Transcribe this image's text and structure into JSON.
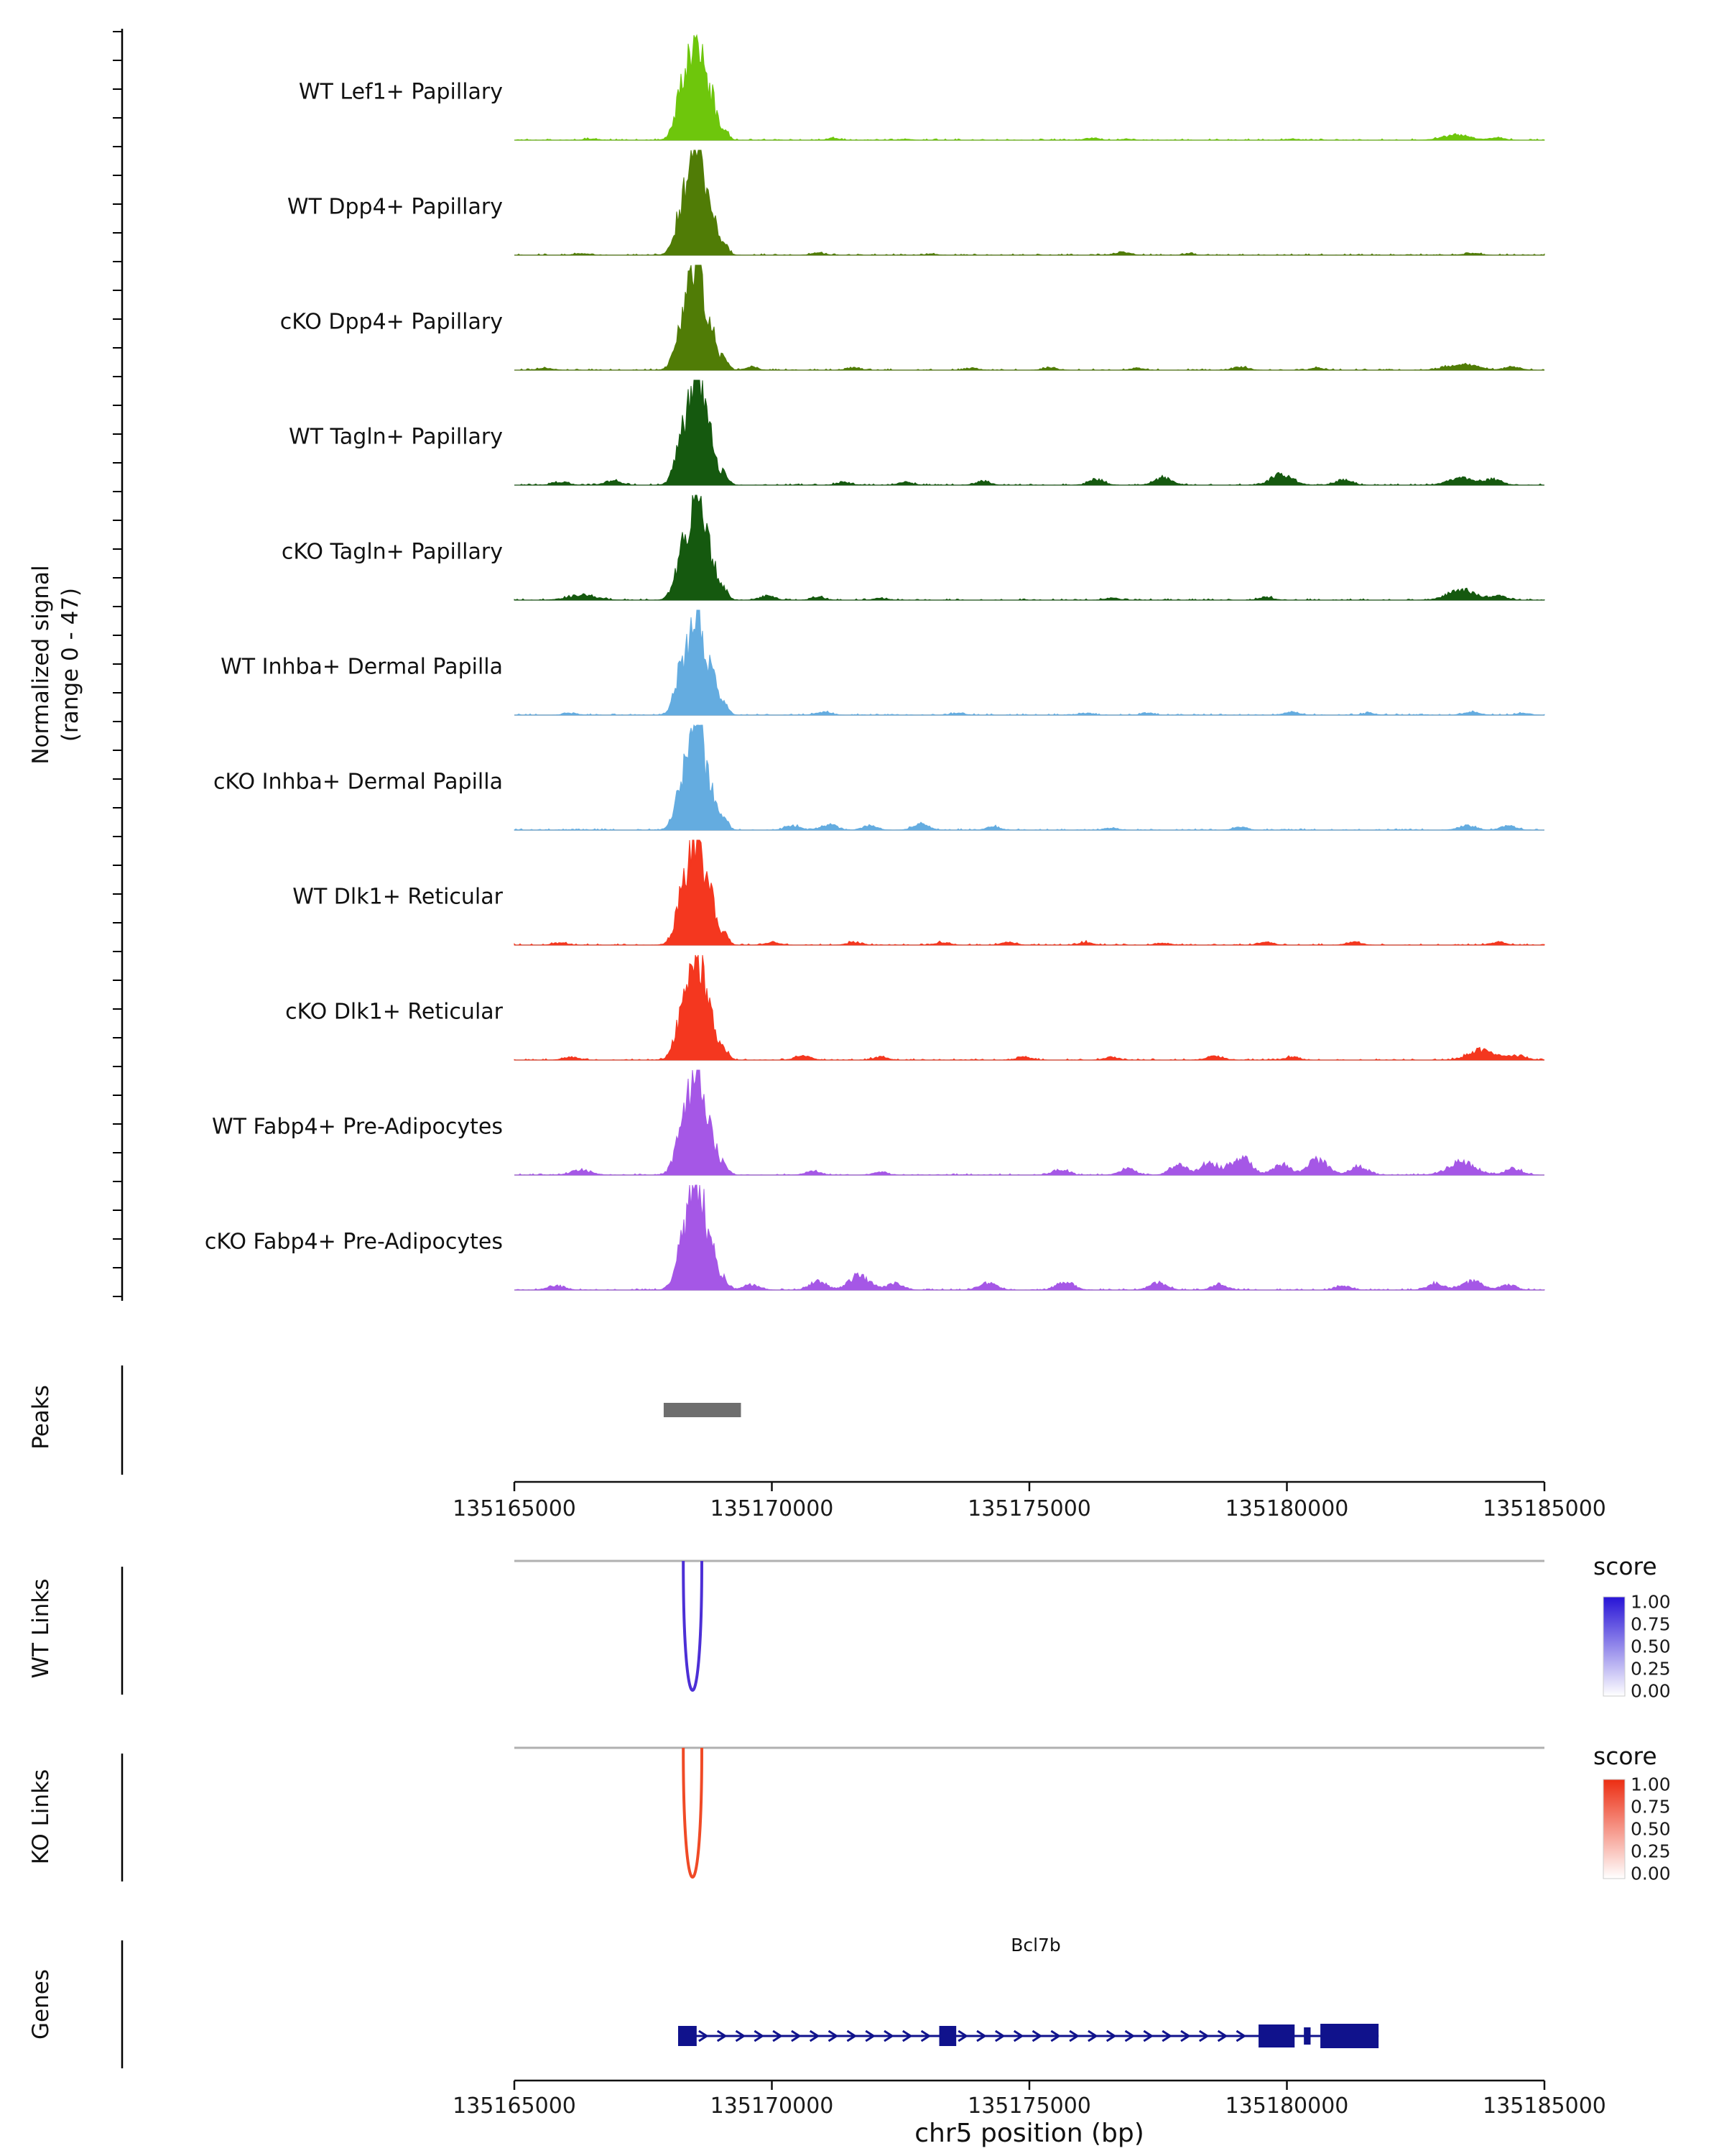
{
  "chart_data": {
    "type": "area",
    "title": "",
    "y_axis": {
      "label_line1": "Normalized signal",
      "label_line2": "(range 0 - 47)",
      "range": [
        0,
        47
      ]
    },
    "x_axis": {
      "label": "chr5 position (bp)",
      "min": 135165000,
      "max": 135185000,
      "ticks": [
        135165000,
        135170000,
        135175000,
        135180000,
        135185000
      ],
      "tick_labels": [
        "135165000",
        "135170000",
        "135175000",
        "135180000",
        "135185000"
      ]
    },
    "sections": {
      "peaks_label": "Peaks",
      "wt_links_label": "WT Links",
      "ko_links_label": "KO Links",
      "genes_label": "Genes"
    },
    "legend": {
      "title": "score",
      "tick_labels": [
        "1.00",
        "0.75",
        "0.50",
        "0.25",
        "0.00"
      ],
      "wt_top_color": "#2713D6",
      "ko_top_color": "#EC2D12"
    },
    "tracks": [
      {
        "label": "WT Lef1+ Papillary",
        "color": "#6EC60C",
        "bumps": [
          [
            135168300,
            0.52,
            150
          ],
          [
            135168560,
            1.0,
            115
          ],
          [
            135168820,
            0.4,
            100
          ],
          [
            135169080,
            0.1,
            80
          ],
          [
            135166500,
            0.012,
            120
          ],
          [
            135171200,
            0.015,
            120
          ],
          [
            135172600,
            0.01,
            100
          ],
          [
            135176200,
            0.02,
            130
          ],
          [
            135176900,
            0.012,
            100
          ],
          [
            135180100,
            0.012,
            100
          ],
          [
            135183300,
            0.05,
            260
          ],
          [
            135184100,
            0.02,
            140
          ]
        ]
      },
      {
        "label": "WT Dpp4+ Papillary",
        "color": "#507C06",
        "bumps": [
          [
            135168300,
            0.52,
            150
          ],
          [
            135168560,
            1.0,
            115
          ],
          [
            135168820,
            0.4,
            100
          ],
          [
            135169080,
            0.1,
            80
          ],
          [
            135166300,
            0.015,
            130
          ],
          [
            135170900,
            0.02,
            120
          ],
          [
            135173100,
            0.01,
            100
          ],
          [
            135176800,
            0.028,
            140
          ],
          [
            135178100,
            0.012,
            100
          ],
          [
            135183600,
            0.018,
            140
          ]
        ]
      },
      {
        "label": "cKO Dpp4+ Papillary",
        "color": "#507C06",
        "bumps": [
          [
            135168300,
            0.52,
            150
          ],
          [
            135168560,
            1.0,
            115
          ],
          [
            135168820,
            0.4,
            100
          ],
          [
            135169080,
            0.1,
            80
          ],
          [
            135165600,
            0.02,
            140
          ],
          [
            135169600,
            0.03,
            120
          ],
          [
            135171600,
            0.022,
            130
          ],
          [
            135173900,
            0.018,
            120
          ],
          [
            135175400,
            0.022,
            130
          ],
          [
            135177100,
            0.02,
            120
          ],
          [
            135179100,
            0.028,
            140
          ],
          [
            135180600,
            0.02,
            120
          ],
          [
            135183400,
            0.055,
            280
          ],
          [
            135184400,
            0.028,
            150
          ]
        ]
      },
      {
        "label": "WT Tagln+ Papillary",
        "color": "#15590F",
        "bumps": [
          [
            135168300,
            0.52,
            150
          ],
          [
            135168560,
            1.0,
            115
          ],
          [
            135168820,
            0.4,
            100
          ],
          [
            135169080,
            0.1,
            80
          ],
          [
            135165900,
            0.03,
            150
          ],
          [
            135166900,
            0.04,
            150
          ],
          [
            135171400,
            0.028,
            130
          ],
          [
            135172600,
            0.028,
            130
          ],
          [
            135174100,
            0.035,
            140
          ],
          [
            135176300,
            0.05,
            150
          ],
          [
            135177600,
            0.075,
            160
          ],
          [
            135179900,
            0.1,
            200
          ],
          [
            135181100,
            0.05,
            150
          ],
          [
            135183400,
            0.07,
            240
          ],
          [
            135184000,
            0.055,
            160
          ]
        ]
      },
      {
        "label": "cKO Tagln+ Papillary",
        "color": "#15590F",
        "bumps": [
          [
            135168300,
            0.52,
            150
          ],
          [
            135168560,
            1.0,
            115
          ],
          [
            135168820,
            0.4,
            100
          ],
          [
            135169080,
            0.1,
            80
          ],
          [
            135166300,
            0.05,
            260
          ],
          [
            135169900,
            0.04,
            140
          ],
          [
            135170900,
            0.028,
            130
          ],
          [
            135172100,
            0.02,
            120
          ],
          [
            135176600,
            0.02,
            130
          ],
          [
            135179600,
            0.028,
            130
          ],
          [
            135183400,
            0.1,
            260
          ],
          [
            135184100,
            0.04,
            150
          ]
        ]
      },
      {
        "label": "WT Inhba+ Dermal Papilla",
        "color": "#64ACE0",
        "bumps": [
          [
            135168300,
            0.52,
            150
          ],
          [
            135168560,
            1.0,
            115
          ],
          [
            135168820,
            0.4,
            100
          ],
          [
            135169080,
            0.1,
            80
          ],
          [
            135166100,
            0.018,
            130
          ],
          [
            135171000,
            0.028,
            140
          ],
          [
            135173600,
            0.018,
            120
          ],
          [
            135176100,
            0.018,
            130
          ],
          [
            135177300,
            0.018,
            120
          ],
          [
            135180100,
            0.026,
            140
          ],
          [
            135181600,
            0.018,
            120
          ],
          [
            135183600,
            0.028,
            150
          ],
          [
            135184600,
            0.018,
            120
          ]
        ]
      },
      {
        "label": "cKO Inhba+ Dermal Papilla",
        "color": "#64ACE0",
        "bumps": [
          [
            135168300,
            0.52,
            150
          ],
          [
            135168560,
            1.0,
            115
          ],
          [
            135168820,
            0.4,
            100
          ],
          [
            135169080,
            0.1,
            80
          ],
          [
            135170400,
            0.04,
            140
          ],
          [
            135171100,
            0.05,
            150
          ],
          [
            135171900,
            0.04,
            140
          ],
          [
            135172900,
            0.06,
            150
          ],
          [
            135174300,
            0.03,
            130
          ],
          [
            135176600,
            0.02,
            120
          ],
          [
            135179100,
            0.026,
            130
          ],
          [
            135183500,
            0.04,
            160
          ],
          [
            135184300,
            0.04,
            150
          ]
        ]
      },
      {
        "label": "WT Dlk1+ Reticular",
        "color": "#F4371F",
        "bumps": [
          [
            135168300,
            0.52,
            150
          ],
          [
            135168560,
            1.0,
            115
          ],
          [
            135168820,
            0.4,
            100
          ],
          [
            135169080,
            0.1,
            80
          ],
          [
            135165900,
            0.02,
            130
          ],
          [
            135170000,
            0.028,
            130
          ],
          [
            135171600,
            0.028,
            130
          ],
          [
            135173300,
            0.026,
            130
          ],
          [
            135174600,
            0.026,
            130
          ],
          [
            135176100,
            0.026,
            130
          ],
          [
            135177600,
            0.02,
            120
          ],
          [
            135179600,
            0.028,
            130
          ],
          [
            135181300,
            0.026,
            130
          ],
          [
            135184100,
            0.028,
            140
          ]
        ]
      },
      {
        "label": "cKO Dlk1+ Reticular",
        "color": "#F4371F",
        "bumps": [
          [
            135168300,
            0.52,
            150
          ],
          [
            135168560,
            1.0,
            115
          ],
          [
            135168820,
            0.4,
            100
          ],
          [
            135169080,
            0.1,
            80
          ],
          [
            135166100,
            0.028,
            140
          ],
          [
            135170600,
            0.04,
            150
          ],
          [
            135172100,
            0.028,
            130
          ],
          [
            135174900,
            0.028,
            130
          ],
          [
            135176600,
            0.028,
            130
          ],
          [
            135178600,
            0.04,
            150
          ],
          [
            135180100,
            0.028,
            130
          ],
          [
            135183800,
            0.09,
            260
          ],
          [
            135184500,
            0.04,
            150
          ]
        ]
      },
      {
        "label": "WT Fabp4+ Pre-Adipocytes",
        "color": "#A557E6",
        "bumps": [
          [
            135168300,
            0.52,
            150
          ],
          [
            135168560,
            1.0,
            115
          ],
          [
            135168820,
            0.4,
            100
          ],
          [
            135169080,
            0.1,
            80
          ],
          [
            135166300,
            0.05,
            180
          ],
          [
            135170800,
            0.04,
            140
          ],
          [
            135172100,
            0.028,
            130
          ],
          [
            135175600,
            0.05,
            150
          ],
          [
            135176900,
            0.06,
            150
          ],
          [
            135177900,
            0.1,
            160
          ],
          [
            135178500,
            0.12,
            160
          ],
          [
            135179100,
            0.16,
            200
          ],
          [
            135179900,
            0.1,
            160
          ],
          [
            135180600,
            0.14,
            200
          ],
          [
            135181400,
            0.08,
            160
          ],
          [
            135183400,
            0.12,
            260
          ],
          [
            135184400,
            0.06,
            160
          ]
        ]
      },
      {
        "label": "cKO Fabp4+ Pre-Adipocytes",
        "color": "#A557E6",
        "bumps": [
          [
            135168300,
            0.52,
            150
          ],
          [
            135168560,
            1.0,
            115
          ],
          [
            135168820,
            0.4,
            100
          ],
          [
            135169080,
            0.1,
            80
          ],
          [
            135165800,
            0.04,
            160
          ],
          [
            135169600,
            0.05,
            150
          ],
          [
            135170900,
            0.08,
            160
          ],
          [
            135171700,
            0.13,
            200
          ],
          [
            135172400,
            0.06,
            150
          ],
          [
            135174200,
            0.07,
            160
          ],
          [
            135175700,
            0.08,
            160
          ],
          [
            135177500,
            0.07,
            160
          ],
          [
            135178700,
            0.05,
            150
          ],
          [
            135181100,
            0.04,
            140
          ],
          [
            135182900,
            0.06,
            160
          ],
          [
            135183600,
            0.08,
            200
          ],
          [
            135184300,
            0.05,
            150
          ]
        ]
      }
    ],
    "peaks": {
      "regions": [
        [
          135167900,
          135169400
        ]
      ],
      "color": "#6E6E6E"
    },
    "links": {
      "wt": {
        "arc_start": 135168280,
        "arc_end": 135168640,
        "score": 1.0,
        "color": "#4C2FD6"
      },
      "ko": {
        "arc_start": 135168280,
        "arc_end": 135168640,
        "score": 1.0,
        "color": "#F04A26"
      }
    },
    "gene": {
      "name": "Bcl7b",
      "strand": "+",
      "color": "#10128C",
      "start": 135168180,
      "end": 135181780,
      "exons": [
        [
          135168180,
          135168540,
          28
        ],
        [
          135173250,
          135173580,
          28
        ],
        [
          135179450,
          135180150,
          32
        ],
        [
          135180330,
          135180460,
          24
        ],
        [
          135180650,
          135181780,
          34
        ]
      ]
    }
  }
}
